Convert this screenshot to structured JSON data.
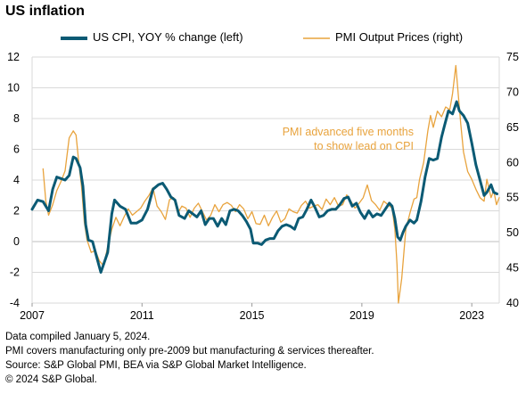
{
  "title": "US inflation",
  "legend": {
    "cpi_label": "US CPI, YOY % change (left)",
    "pmi_label": "PMI Output Prices (right)"
  },
  "colors": {
    "cpi": "#0b5a74",
    "pmi": "#e8a33d",
    "grid": "#d9d9d9",
    "zero": "#bfbfbf"
  },
  "annotation": {
    "line1": "PMI advanced five months",
    "line2": "to show lead on CPI"
  },
  "footnotes": {
    "line1": "Data compiled January 5, 2024.",
    "line2": "PMI covers manufacturing only pre-2009 but manufacturing & services thereafter.",
    "line3": "Source: S&P Global PMI, BEA via S&P Global Market Intelligence.",
    "line4": "© 2024 S&P Global."
  },
  "chart_data": {
    "type": "line",
    "x_ticks": [
      "2007",
      "2011",
      "2015",
      "2019",
      "2023"
    ],
    "x_range": [
      2007.0,
      2024.0
    ],
    "y_left": {
      "ticks": [
        12,
        10,
        8,
        6,
        4,
        2,
        0,
        -2,
        -4
      ],
      "ylim": [
        -4,
        12
      ]
    },
    "y_right": {
      "ticks": [
        75,
        70,
        65,
        60,
        55,
        50,
        45,
        40
      ],
      "ylim": [
        40,
        75
      ]
    },
    "grid": "horizontal",
    "legend_position": "top",
    "series": [
      {
        "name": "US CPI, YOY % change (left)",
        "axis": "left",
        "points": [
          [
            2007.0,
            2.1
          ],
          [
            2007.2,
            2.7
          ],
          [
            2007.4,
            2.6
          ],
          [
            2007.6,
            2.0
          ],
          [
            2007.75,
            3.4
          ],
          [
            2007.9,
            4.2
          ],
          [
            2008.05,
            4.1
          ],
          [
            2008.2,
            4.0
          ],
          [
            2008.35,
            4.3
          ],
          [
            2008.5,
            5.5
          ],
          [
            2008.6,
            5.4
          ],
          [
            2008.75,
            4.8
          ],
          [
            2008.85,
            3.6
          ],
          [
            2008.95,
            1.1
          ],
          [
            2009.05,
            0.1
          ],
          [
            2009.2,
            0.0
          ],
          [
            2009.35,
            -1.0
          ],
          [
            2009.5,
            -2.0
          ],
          [
            2009.6,
            -1.5
          ],
          [
            2009.75,
            -0.7
          ],
          [
            2009.9,
            1.8
          ],
          [
            2010.0,
            2.7
          ],
          [
            2010.2,
            2.3
          ],
          [
            2010.4,
            2.1
          ],
          [
            2010.6,
            1.2
          ],
          [
            2010.8,
            1.2
          ],
          [
            2011.0,
            1.4
          ],
          [
            2011.2,
            2.1
          ],
          [
            2011.4,
            3.4
          ],
          [
            2011.6,
            3.7
          ],
          [
            2011.75,
            3.8
          ],
          [
            2011.9,
            3.4
          ],
          [
            2012.05,
            2.9
          ],
          [
            2012.2,
            2.7
          ],
          [
            2012.35,
            1.7
          ],
          [
            2012.55,
            1.5
          ],
          [
            2012.7,
            2.0
          ],
          [
            2012.85,
            1.8
          ],
          [
            2013.0,
            1.6
          ],
          [
            2013.15,
            2.0
          ],
          [
            2013.3,
            1.1
          ],
          [
            2013.45,
            1.5
          ],
          [
            2013.6,
            1.5
          ],
          [
            2013.75,
            1.0
          ],
          [
            2013.9,
            1.5
          ],
          [
            2014.05,
            1.1
          ],
          [
            2014.2,
            2.0
          ],
          [
            2014.35,
            2.1
          ],
          [
            2014.5,
            2.0
          ],
          [
            2014.65,
            1.7
          ],
          [
            2014.8,
            1.3
          ],
          [
            2014.95,
            0.8
          ],
          [
            2015.05,
            -0.1
          ],
          [
            2015.2,
            -0.1
          ],
          [
            2015.35,
            -0.2
          ],
          [
            2015.5,
            0.1
          ],
          [
            2015.65,
            0.2
          ],
          [
            2015.8,
            0.2
          ],
          [
            2015.95,
            0.7
          ],
          [
            2016.1,
            1.0
          ],
          [
            2016.25,
            1.1
          ],
          [
            2016.4,
            1.0
          ],
          [
            2016.55,
            0.8
          ],
          [
            2016.7,
            1.5
          ],
          [
            2016.85,
            1.6
          ],
          [
            2017.0,
            2.1
          ],
          [
            2017.15,
            2.7
          ],
          [
            2017.3,
            2.2
          ],
          [
            2017.45,
            1.6
          ],
          [
            2017.6,
            1.7
          ],
          [
            2017.75,
            2.0
          ],
          [
            2017.9,
            2.1
          ],
          [
            2018.05,
            2.1
          ],
          [
            2018.2,
            2.4
          ],
          [
            2018.35,
            2.8
          ],
          [
            2018.5,
            2.9
          ],
          [
            2018.65,
            2.3
          ],
          [
            2018.8,
            2.5
          ],
          [
            2018.95,
            1.9
          ],
          [
            2019.1,
            1.5
          ],
          [
            2019.25,
            2.0
          ],
          [
            2019.4,
            1.6
          ],
          [
            2019.55,
            1.8
          ],
          [
            2019.7,
            1.7
          ],
          [
            2019.85,
            2.1
          ],
          [
            2020.0,
            2.5
          ],
          [
            2020.1,
            2.3
          ],
          [
            2020.2,
            1.5
          ],
          [
            2020.3,
            0.3
          ],
          [
            2020.4,
            0.1
          ],
          [
            2020.5,
            0.6
          ],
          [
            2020.6,
            1.0
          ],
          [
            2020.75,
            1.4
          ],
          [
            2020.9,
            1.2
          ],
          [
            2021.0,
            1.4
          ],
          [
            2021.15,
            2.6
          ],
          [
            2021.3,
            4.2
          ],
          [
            2021.45,
            5.4
          ],
          [
            2021.6,
            5.3
          ],
          [
            2021.75,
            5.4
          ],
          [
            2021.9,
            6.8
          ],
          [
            2022.0,
            7.5
          ],
          [
            2022.15,
            8.5
          ],
          [
            2022.3,
            8.3
          ],
          [
            2022.45,
            9.1
          ],
          [
            2022.55,
            8.5
          ],
          [
            2022.7,
            8.2
          ],
          [
            2022.85,
            7.7
          ],
          [
            2023.0,
            6.4
          ],
          [
            2023.15,
            5.0
          ],
          [
            2023.3,
            4.0
          ],
          [
            2023.45,
            3.0
          ],
          [
            2023.55,
            3.2
          ],
          [
            2023.7,
            3.7
          ],
          [
            2023.8,
            3.2
          ],
          [
            2023.92,
            3.1
          ]
        ]
      },
      {
        "name": "PMI Output Prices (right)",
        "axis": "right",
        "points": [
          [
            2007.4,
            59.1
          ],
          [
            2007.5,
            54.5
          ],
          [
            2007.6,
            52.5
          ],
          [
            2007.75,
            54.0
          ],
          [
            2007.9,
            56.0
          ],
          [
            2008.05,
            57.3
          ],
          [
            2008.2,
            58.8
          ],
          [
            2008.35,
            63.5
          ],
          [
            2008.5,
            64.5
          ],
          [
            2008.6,
            63.9
          ],
          [
            2008.7,
            60.0
          ],
          [
            2008.8,
            56.5
          ],
          [
            2008.9,
            51.5
          ],
          [
            2009.0,
            49.0
          ],
          [
            2009.15,
            47.2
          ],
          [
            2009.3,
            47.5
          ],
          [
            2009.45,
            46.0
          ],
          [
            2009.6,
            45.3
          ],
          [
            2009.75,
            48.0
          ],
          [
            2009.9,
            50.5
          ],
          [
            2010.05,
            52.2
          ],
          [
            2010.2,
            51.0
          ],
          [
            2010.35,
            52.3
          ],
          [
            2010.5,
            53.4
          ],
          [
            2010.65,
            52.5
          ],
          [
            2010.8,
            53.0
          ],
          [
            2010.95,
            53.5
          ],
          [
            2011.1,
            54.5
          ],
          [
            2011.25,
            55.3
          ],
          [
            2011.4,
            56.4
          ],
          [
            2011.55,
            53.8
          ],
          [
            2011.7,
            53.0
          ],
          [
            2011.85,
            51.9
          ],
          [
            2012.0,
            54.7
          ],
          [
            2012.15,
            55.0
          ],
          [
            2012.3,
            52.8
          ],
          [
            2012.45,
            53.8
          ],
          [
            2012.6,
            53.5
          ],
          [
            2012.75,
            52.2
          ],
          [
            2012.9,
            53.5
          ],
          [
            2013.05,
            54.2
          ],
          [
            2013.2,
            53.0
          ],
          [
            2013.35,
            51.8
          ],
          [
            2013.5,
            52.5
          ],
          [
            2013.65,
            54.0
          ],
          [
            2013.8,
            53.0
          ],
          [
            2013.95,
            54.0
          ],
          [
            2014.1,
            54.3
          ],
          [
            2014.25,
            53.9
          ],
          [
            2014.4,
            53.0
          ],
          [
            2014.55,
            54.0
          ],
          [
            2014.7,
            53.4
          ],
          [
            2014.85,
            52.0
          ],
          [
            2015.0,
            53.0
          ],
          [
            2015.15,
            51.3
          ],
          [
            2015.3,
            51.2
          ],
          [
            2015.45,
            52.5
          ],
          [
            2015.6,
            51.0
          ],
          [
            2015.75,
            52.2
          ],
          [
            2015.9,
            53.1
          ],
          [
            2016.05,
            51.5
          ],
          [
            2016.2,
            52.0
          ],
          [
            2016.35,
            53.4
          ],
          [
            2016.5,
            53.0
          ],
          [
            2016.65,
            52.8
          ],
          [
            2016.8,
            53.9
          ],
          [
            2016.95,
            54.5
          ],
          [
            2017.1,
            53.5
          ],
          [
            2017.25,
            53.8
          ],
          [
            2017.4,
            54.0
          ],
          [
            2017.55,
            53.3
          ],
          [
            2017.7,
            54.8
          ],
          [
            2017.85,
            54.0
          ],
          [
            2018.0,
            55.0
          ],
          [
            2018.15,
            53.8
          ],
          [
            2018.3,
            54.0
          ],
          [
            2018.45,
            55.4
          ],
          [
            2018.6,
            54.5
          ],
          [
            2018.75,
            53.5
          ],
          [
            2018.9,
            54.2
          ],
          [
            2019.05,
            55.0
          ],
          [
            2019.2,
            56.8
          ],
          [
            2019.35,
            54.6
          ],
          [
            2019.5,
            54.0
          ],
          [
            2019.65,
            53.2
          ],
          [
            2019.8,
            54.5
          ],
          [
            2019.95,
            54.0
          ],
          [
            2020.1,
            53.5
          ],
          [
            2020.2,
            50.5
          ],
          [
            2020.28,
            45.5
          ],
          [
            2020.33,
            40.0
          ],
          [
            2020.45,
            43.5
          ],
          [
            2020.6,
            50.5
          ],
          [
            2020.75,
            52.8
          ],
          [
            2020.9,
            54.8
          ],
          [
            2021.0,
            55.0
          ],
          [
            2021.1,
            57.6
          ],
          [
            2021.25,
            60.0
          ],
          [
            2021.4,
            64.5
          ],
          [
            2021.5,
            66.7
          ],
          [
            2021.6,
            65.0
          ],
          [
            2021.75,
            67.3
          ],
          [
            2021.9,
            66.5
          ],
          [
            2022.05,
            67.9
          ],
          [
            2022.2,
            67.5
          ],
          [
            2022.3,
            69.8
          ],
          [
            2022.42,
            73.8
          ],
          [
            2022.5,
            70.0
          ],
          [
            2022.6,
            65.5
          ],
          [
            2022.7,
            61.5
          ],
          [
            2022.85,
            58.7
          ],
          [
            2023.0,
            57.6
          ],
          [
            2023.15,
            56.2
          ],
          [
            2023.3,
            55.0
          ],
          [
            2023.45,
            54.5
          ],
          [
            2023.55,
            57.6
          ],
          [
            2023.7,
            55.0
          ],
          [
            2023.8,
            56.0
          ],
          [
            2023.9,
            54.0
          ],
          [
            2024.0,
            55.0
          ]
        ]
      }
    ]
  }
}
